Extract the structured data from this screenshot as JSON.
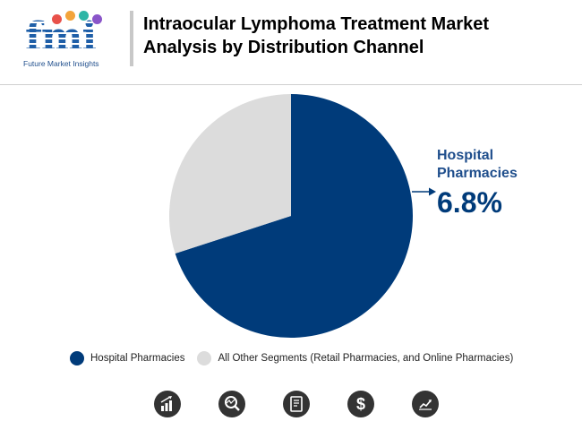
{
  "header": {
    "logo_text": "fmi",
    "logo_subtitle": "Future Market Insights",
    "title": "Intraocular Lymphoma Treatment Market Analysis by Distribution Channel"
  },
  "colors": {
    "primary": "#003b7a",
    "secondary": "#dcdcdc",
    "callout": "#1f4e8c",
    "logo_dots": [
      "#e8514a",
      "#f3a43b",
      "#2eb5a6",
      "#8a55c9"
    ]
  },
  "chart_data": {
    "type": "pie",
    "title": "Intraocular Lymphoma Treatment Market Analysis by Distribution Channel",
    "slices": [
      {
        "name": "Hospital Pharmacies",
        "value": 70,
        "color": "#003b7a"
      },
      {
        "name": "All Other Segments (Retail Pharmacies, and Online Pharmacies)",
        "value": 30,
        "color": "#dcdcdc"
      }
    ],
    "annotation": {
      "label": "Hospital Pharmacies",
      "value": "6.8%"
    },
    "legend_position": "bottom"
  },
  "legend": [
    {
      "label": "Hospital Pharmacies",
      "color": "#003b7a"
    },
    {
      "label": "All Other Segments (Retail Pharmacies, and Online Pharmacies)",
      "color": "#dcdcdc"
    }
  ],
  "footer_icons": [
    "growth-chart-icon",
    "magnify-analysis-icon",
    "report-document-icon",
    "dollar-icon",
    "trend-chart-icon"
  ]
}
